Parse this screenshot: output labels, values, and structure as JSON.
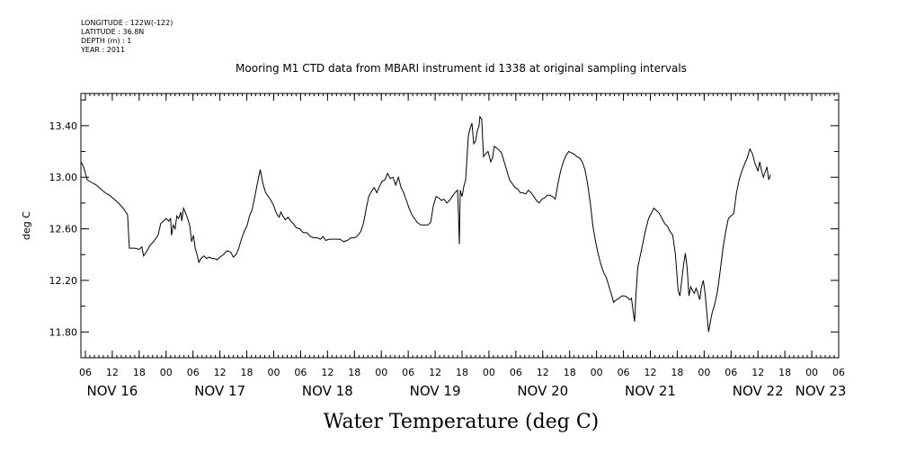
{
  "meta": {
    "longitude": "LONGITUDE : 122W(-122)",
    "latitude": "LATITUDE : 36.8N",
    "depth": "DEPTH (m) : 1",
    "year": "YEAR : 2011"
  },
  "chart_data": {
    "type": "line",
    "title": "Mooring M1 CTD data from MBARI instrument id 1338 at original sampling intervals",
    "xlabel": "Water Temperature (deg C)",
    "ylabel": "deg C",
    "x_unit": "hours since Nov 16 00:00, 2011",
    "xlim": [
      -7,
      162
    ],
    "ylim": [
      11.6,
      13.65
    ],
    "yticks": [
      11.8,
      12.2,
      12.6,
      13.0,
      13.4
    ],
    "ytick_labels": [
      "11.80",
      "12.20",
      "12.60",
      "13.00",
      "13.40"
    ],
    "hour_ticks": [
      {
        "h": -6,
        "label": "06"
      },
      {
        "h": 0,
        "label": "12"
      },
      {
        "h": 6,
        "label": "18"
      },
      {
        "h": 12,
        "label": "00"
      },
      {
        "h": 18,
        "label": "06"
      },
      {
        "h": 24,
        "label": "12"
      },
      {
        "h": 30,
        "label": "18"
      },
      {
        "h": 36,
        "label": "00"
      },
      {
        "h": 42,
        "label": "06"
      },
      {
        "h": 48,
        "label": "12"
      },
      {
        "h": 54,
        "label": "18"
      },
      {
        "h": 60,
        "label": "00"
      },
      {
        "h": 66,
        "label": "06"
      },
      {
        "h": 72,
        "label": "12"
      },
      {
        "h": 78,
        "label": "18"
      },
      {
        "h": 84,
        "label": "00"
      },
      {
        "h": 90,
        "label": "06"
      },
      {
        "h": 96,
        "label": "12"
      },
      {
        "h": 102,
        "label": "18"
      },
      {
        "h": 108,
        "label": "00"
      },
      {
        "h": 114,
        "label": "06"
      },
      {
        "h": 120,
        "label": "12"
      },
      {
        "h": 126,
        "label": "18"
      },
      {
        "h": 132,
        "label": "00"
      },
      {
        "h": 138,
        "label": "06"
      },
      {
        "h": 144,
        "label": "12"
      },
      {
        "h": 150,
        "label": "18"
      },
      {
        "h": 156,
        "label": "00"
      },
      {
        "h": 162,
        "label": "06"
      }
    ],
    "date_labels": [
      {
        "h": 0,
        "label": "NOV 16"
      },
      {
        "h": 24,
        "label": "NOV 17"
      },
      {
        "h": 48,
        "label": "NOV 18"
      },
      {
        "h": 72,
        "label": "NOV 19"
      },
      {
        "h": 96,
        "label": "NOV 20"
      },
      {
        "h": 120,
        "label": "NOV 21"
      },
      {
        "h": 144,
        "label": "NOV 22"
      },
      {
        "h": 158,
        "label": "NOV 23"
      }
    ],
    "series": [
      {
        "color": "#000000",
        "points": [
          [
            -7.0,
            13.12
          ],
          [
            -6.4,
            13.08
          ],
          [
            -5.6,
            12.98
          ],
          [
            -4.6,
            12.96
          ],
          [
            -3.6,
            12.94
          ],
          [
            -2.6,
            12.91
          ],
          [
            -1.6,
            12.88
          ],
          [
            -0.6,
            12.86
          ],
          [
            0.4,
            12.83
          ],
          [
            1.4,
            12.8
          ],
          [
            2.4,
            12.76
          ],
          [
            3.4,
            12.71
          ],
          [
            3.8,
            12.45
          ],
          [
            5.0,
            12.45
          ],
          [
            6.0,
            12.44
          ],
          [
            6.6,
            12.46
          ],
          [
            7.0,
            12.39
          ],
          [
            7.6,
            12.42
          ],
          [
            8.4,
            12.47
          ],
          [
            9.2,
            12.5
          ],
          [
            10.2,
            12.55
          ],
          [
            10.8,
            12.64
          ],
          [
            11.4,
            12.66
          ],
          [
            12.0,
            12.68
          ],
          [
            12.6,
            12.66
          ],
          [
            13.0,
            12.68
          ],
          [
            13.2,
            12.55
          ],
          [
            13.6,
            12.63
          ],
          [
            14.0,
            12.6
          ],
          [
            14.4,
            12.7
          ],
          [
            14.8,
            12.68
          ],
          [
            15.3,
            12.73
          ],
          [
            15.5,
            12.66
          ],
          [
            15.9,
            12.76
          ],
          [
            16.4,
            12.72
          ],
          [
            16.9,
            12.67
          ],
          [
            17.3,
            12.62
          ],
          [
            17.7,
            12.5
          ],
          [
            18.1,
            12.55
          ],
          [
            18.5,
            12.45
          ],
          [
            18.9,
            12.4
          ],
          [
            19.3,
            12.34
          ],
          [
            19.8,
            12.37
          ],
          [
            20.4,
            12.39
          ],
          [
            21.0,
            12.37
          ],
          [
            21.6,
            12.38
          ],
          [
            22.2,
            12.37
          ],
          [
            22.8,
            12.37
          ],
          [
            23.4,
            12.36
          ],
          [
            24.0,
            12.38
          ],
          [
            24.8,
            12.4
          ],
          [
            25.6,
            12.43
          ],
          [
            26.4,
            12.42
          ],
          [
            27.0,
            12.38
          ],
          [
            27.6,
            12.4
          ],
          [
            28.2,
            12.45
          ],
          [
            28.8,
            12.52
          ],
          [
            29.4,
            12.58
          ],
          [
            30.0,
            12.62
          ],
          [
            30.6,
            12.7
          ],
          [
            31.2,
            12.75
          ],
          [
            31.8,
            12.85
          ],
          [
            32.4,
            12.96
          ],
          [
            33.0,
            13.06
          ],
          [
            33.6,
            12.95
          ],
          [
            34.2,
            12.88
          ],
          [
            34.8,
            12.85
          ],
          [
            35.4,
            12.82
          ],
          [
            36.0,
            12.78
          ],
          [
            36.6,
            12.72
          ],
          [
            37.2,
            12.69
          ],
          [
            37.6,
            12.73
          ],
          [
            38.0,
            12.7
          ],
          [
            38.6,
            12.67
          ],
          [
            39.2,
            12.69
          ],
          [
            39.8,
            12.66
          ],
          [
            40.4,
            12.64
          ],
          [
            41.0,
            12.61
          ],
          [
            41.8,
            12.6
          ],
          [
            42.6,
            12.57
          ],
          [
            43.4,
            12.57
          ],
          [
            44.2,
            12.54
          ],
          [
            45.0,
            12.53
          ],
          [
            45.8,
            12.53
          ],
          [
            46.4,
            12.52
          ],
          [
            47.0,
            12.54
          ],
          [
            47.6,
            12.51
          ],
          [
            48.4,
            12.52
          ],
          [
            49.2,
            12.52
          ],
          [
            50.0,
            12.52
          ],
          [
            50.8,
            12.52
          ],
          [
            51.6,
            12.5
          ],
          [
            52.4,
            12.51
          ],
          [
            53.2,
            12.53
          ],
          [
            54.0,
            12.53
          ],
          [
            54.8,
            12.55
          ],
          [
            55.4,
            12.58
          ],
          [
            56.0,
            12.64
          ],
          [
            56.6,
            12.75
          ],
          [
            57.2,
            12.85
          ],
          [
            57.8,
            12.89
          ],
          [
            58.4,
            12.92
          ],
          [
            59.0,
            12.88
          ],
          [
            59.6,
            12.93
          ],
          [
            60.2,
            12.97
          ],
          [
            60.8,
            12.98
          ],
          [
            61.4,
            13.03
          ],
          [
            62.0,
            12.99
          ],
          [
            62.6,
            13.0
          ],
          [
            63.2,
            12.94
          ],
          [
            63.8,
            13.0
          ],
          [
            64.4,
            12.92
          ],
          [
            65.0,
            12.88
          ],
          [
            65.6,
            12.82
          ],
          [
            66.2,
            12.76
          ],
          [
            66.8,
            12.71
          ],
          [
            67.4,
            12.68
          ],
          [
            68.0,
            12.65
          ],
          [
            68.8,
            12.63
          ],
          [
            69.6,
            12.63
          ],
          [
            70.4,
            12.63
          ],
          [
            71.0,
            12.65
          ],
          [
            71.6,
            12.78
          ],
          [
            72.2,
            12.85
          ],
          [
            72.8,
            12.84
          ],
          [
            73.4,
            12.82
          ],
          [
            74.0,
            12.83
          ],
          [
            74.6,
            12.8
          ],
          [
            75.2,
            12.82
          ],
          [
            75.8,
            12.85
          ],
          [
            76.4,
            12.88
          ],
          [
            77.0,
            12.9
          ],
          [
            77.2,
            12.72
          ],
          [
            77.4,
            12.48
          ],
          [
            77.6,
            12.9
          ],
          [
            78.0,
            12.85
          ],
          [
            78.4,
            12.93
          ],
          [
            78.8,
            12.98
          ],
          [
            79.4,
            13.32
          ],
          [
            79.8,
            13.38
          ],
          [
            80.2,
            13.42
          ],
          [
            80.6,
            13.26
          ],
          [
            81.0,
            13.28
          ],
          [
            81.4,
            13.36
          ],
          [
            81.8,
            13.4
          ],
          [
            82.0,
            13.47
          ],
          [
            82.4,
            13.45
          ],
          [
            82.8,
            13.16
          ],
          [
            83.2,
            13.18
          ],
          [
            83.8,
            13.2
          ],
          [
            84.4,
            13.12
          ],
          [
            84.8,
            13.15
          ],
          [
            85.2,
            13.24
          ],
          [
            86.0,
            13.22
          ],
          [
            86.8,
            13.19
          ],
          [
            87.4,
            13.12
          ],
          [
            88.0,
            13.05
          ],
          [
            88.6,
            12.98
          ],
          [
            89.2,
            12.95
          ],
          [
            89.8,
            12.92
          ],
          [
            90.4,
            12.91
          ],
          [
            91.0,
            12.88
          ],
          [
            91.6,
            12.88
          ],
          [
            92.2,
            12.87
          ],
          [
            92.8,
            12.9
          ],
          [
            93.4,
            12.88
          ],
          [
            94.0,
            12.85
          ],
          [
            94.6,
            12.82
          ],
          [
            95.2,
            12.8
          ],
          [
            95.8,
            12.83
          ],
          [
            96.4,
            12.84
          ],
          [
            97.0,
            12.86
          ],
          [
            97.6,
            12.86
          ],
          [
            98.2,
            12.85
          ],
          [
            98.8,
            12.83
          ],
          [
            99.4,
            12.95
          ],
          [
            100.0,
            13.05
          ],
          [
            100.6,
            13.12
          ],
          [
            101.2,
            13.17
          ],
          [
            101.8,
            13.2
          ],
          [
            102.4,
            13.19
          ],
          [
            103.0,
            13.18
          ],
          [
            103.6,
            13.16
          ],
          [
            104.2,
            13.15
          ],
          [
            104.8,
            13.12
          ],
          [
            105.4,
            13.06
          ],
          [
            106.0,
            12.95
          ],
          [
            106.6,
            12.8
          ],
          [
            107.2,
            12.62
          ],
          [
            107.8,
            12.5
          ],
          [
            108.4,
            12.4
          ],
          [
            109.0,
            12.32
          ],
          [
            109.6,
            12.26
          ],
          [
            110.2,
            12.22
          ],
          [
            110.8,
            12.15
          ],
          [
            111.4,
            12.08
          ],
          [
            111.8,
            12.03
          ],
          [
            112.4,
            12.05
          ],
          [
            113.0,
            12.06
          ],
          [
            113.6,
            12.08
          ],
          [
            114.2,
            12.08
          ],
          [
            114.8,
            12.07
          ],
          [
            115.4,
            12.05
          ],
          [
            115.8,
            12.06
          ],
          [
            116.2,
            11.95
          ],
          [
            116.5,
            11.88
          ],
          [
            116.8,
            12.1
          ],
          [
            117.2,
            12.3
          ],
          [
            117.8,
            12.4
          ],
          [
            118.4,
            12.5
          ],
          [
            119.0,
            12.6
          ],
          [
            119.6,
            12.68
          ],
          [
            120.2,
            12.72
          ],
          [
            120.8,
            12.76
          ],
          [
            121.4,
            12.74
          ],
          [
            122.0,
            12.72
          ],
          [
            122.6,
            12.68
          ],
          [
            123.2,
            12.64
          ],
          [
            123.8,
            12.62
          ],
          [
            124.4,
            12.58
          ],
          [
            125.0,
            12.55
          ],
          [
            125.6,
            12.4
          ],
          [
            126.2,
            12.12
          ],
          [
            126.6,
            12.08
          ],
          [
            127.0,
            12.2
          ],
          [
            127.4,
            12.32
          ],
          [
            127.8,
            12.41
          ],
          [
            128.2,
            12.3
          ],
          [
            128.6,
            12.08
          ],
          [
            129.0,
            12.15
          ],
          [
            129.4,
            12.12
          ],
          [
            129.8,
            12.1
          ],
          [
            130.2,
            12.14
          ],
          [
            130.6,
            12.1
          ],
          [
            131.0,
            12.05
          ],
          [
            131.4,
            12.15
          ],
          [
            131.8,
            12.2
          ],
          [
            132.2,
            12.1
          ],
          [
            132.6,
            11.95
          ],
          [
            133.0,
            11.8
          ],
          [
            133.4,
            11.88
          ],
          [
            133.8,
            11.95
          ],
          [
            134.4,
            12.02
          ],
          [
            135.0,
            12.12
          ],
          [
            135.6,
            12.28
          ],
          [
            136.2,
            12.45
          ],
          [
            136.8,
            12.58
          ],
          [
            137.4,
            12.68
          ],
          [
            138.0,
            12.7
          ],
          [
            138.6,
            12.72
          ],
          [
            139.2,
            12.88
          ],
          [
            139.8,
            12.98
          ],
          [
            140.4,
            13.05
          ],
          [
            141.0,
            13.1
          ],
          [
            141.6,
            13.15
          ],
          [
            142.2,
            13.22
          ],
          [
            142.8,
            13.18
          ],
          [
            143.4,
            13.1
          ],
          [
            144.0,
            13.05
          ],
          [
            144.4,
            13.12
          ],
          [
            144.8,
            13.05
          ],
          [
            145.2,
            13.0
          ],
          [
            145.6,
            13.04
          ],
          [
            146.0,
            13.08
          ],
          [
            146.4,
            12.98
          ],
          [
            146.8,
            13.02
          ]
        ]
      }
    ]
  }
}
